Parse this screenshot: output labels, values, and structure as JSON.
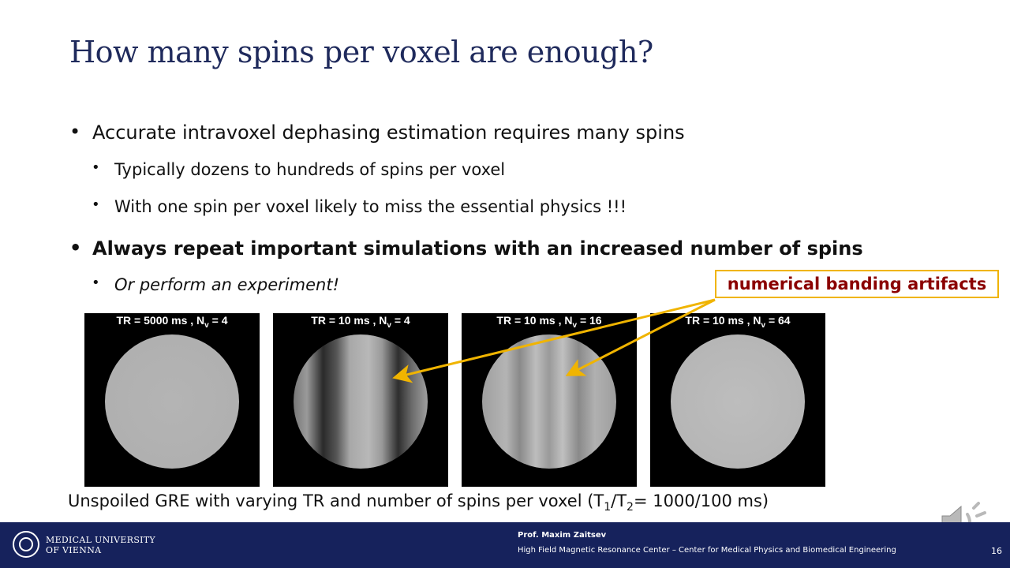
{
  "slide": {
    "title": "How many spins per voxel are enough?",
    "bullets": {
      "b1": "Accurate intravoxel dephasing estimation requires many spins",
      "b2": "Typically dozens to hundreds of spins per voxel",
      "b3": "With one spin per voxel likely to miss the essential physics !!!",
      "b4": "Always repeat important simulations with an increased number of spins",
      "b5": "Or perform an experiment!"
    },
    "callout": "numerical banding artifacts",
    "panels": [
      {
        "tr": "TR = 5000 ms , N",
        "sub": "v",
        "n": " = 4"
      },
      {
        "tr": "TR = 10 ms , N",
        "sub": "v",
        "n": " = 4"
      },
      {
        "tr": "TR = 10 ms , N",
        "sub": "v",
        "n": " = 16"
      },
      {
        "tr": "TR = 10 ms , N",
        "sub": "v",
        "n": " = 64"
      }
    ],
    "caption": {
      "part1": "Unspoiled GRE with varying TR and number of spins per voxel (T",
      "sub1": "1",
      "mid": "/T",
      "sub2": "2",
      "part2": "= 1000/100 ms)"
    }
  },
  "footer": {
    "university_line1": "MEDICAL UNIVERSITY",
    "university_line2": "OF VIENNA",
    "author": "Prof. Maxim Zaitsev",
    "affiliation": "High Field Magnetic Resonance Center – Center for Medical Physics and Biomedical Engineering",
    "page_number": "16"
  },
  "colors": {
    "title": "#1f2a5c",
    "footer_bg": "#16225c",
    "callout_border": "#f0b400",
    "callout_text": "#8b0000",
    "arrow": "#f0b400"
  },
  "icons": {
    "speaker": "speaker-icon",
    "logo": "university-logo-icon"
  }
}
